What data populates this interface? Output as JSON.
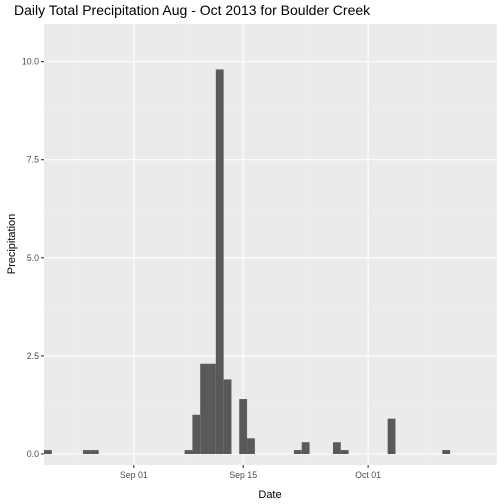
{
  "chart_data": {
    "type": "bar",
    "title": "Daily Total Precipitation Aug - Oct 2013 for Boulder Creek",
    "xlabel": "Date",
    "ylabel": "Precipitation",
    "x_range": [
      "2013-08-21",
      "2013-10-17"
    ],
    "ylim": [
      0,
      10.5
    ],
    "x_ticks": [
      {
        "date": "2013-09-01",
        "label": "Sep 01"
      },
      {
        "date": "2013-09-15",
        "label": "Sep 15"
      },
      {
        "date": "2013-10-01",
        "label": "Oct 01"
      }
    ],
    "y_ticks": [
      {
        "value": 0,
        "label": "0.0"
      },
      {
        "value": 2.5,
        "label": "2.5"
      },
      {
        "value": 5.0,
        "label": "5.0"
      },
      {
        "value": 7.5,
        "label": "7.5"
      },
      {
        "value": 10.0,
        "label": "10.0"
      }
    ],
    "grid": true,
    "bar_color": "#595959",
    "panel_color": "#ebebeb",
    "points": [
      {
        "date": "2013-08-21",
        "value": 0.1
      },
      {
        "date": "2013-08-26",
        "value": 0.1
      },
      {
        "date": "2013-08-27",
        "value": 0.1
      },
      {
        "date": "2013-09-08",
        "value": 0.1
      },
      {
        "date": "2013-09-09",
        "value": 1.0
      },
      {
        "date": "2013-09-10",
        "value": 2.3
      },
      {
        "date": "2013-09-11",
        "value": 2.3
      },
      {
        "date": "2013-09-12",
        "value": 9.8
      },
      {
        "date": "2013-09-13",
        "value": 1.9
      },
      {
        "date": "2013-09-15",
        "value": 1.4
      },
      {
        "date": "2013-09-16",
        "value": 0.4
      },
      {
        "date": "2013-09-22",
        "value": 0.1
      },
      {
        "date": "2013-09-23",
        "value": 0.3
      },
      {
        "date": "2013-09-27",
        "value": 0.3
      },
      {
        "date": "2013-09-28",
        "value": 0.1
      },
      {
        "date": "2013-10-04",
        "value": 0.9
      },
      {
        "date": "2013-10-11",
        "value": 0.1
      }
    ]
  }
}
